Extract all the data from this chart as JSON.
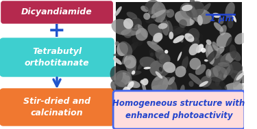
{
  "box1_text": "Dicyandiamide",
  "box1_bg": "#b5294e",
  "box1_text_color": "white",
  "plus_color": "#2255cc",
  "box2_text": "Tetrabutyl\northotitanate",
  "box2_bg": "#3ecfcf",
  "box2_text_color": "white",
  "arrow_color": "#2255cc",
  "box3_text": "Stir-dried and\ncalcination",
  "box3_bg": "#f07830",
  "box3_text_color": "white",
  "box4_text": "Homogeneous structure with\nenhanced photoactivity",
  "box4_bg": "#ffdddd",
  "box4_border": "#4466ee",
  "box4_text_color": "#2244cc",
  "scalebar_text": "1 μm",
  "scalebar_color": "#2244cc",
  "bg_color": "white"
}
